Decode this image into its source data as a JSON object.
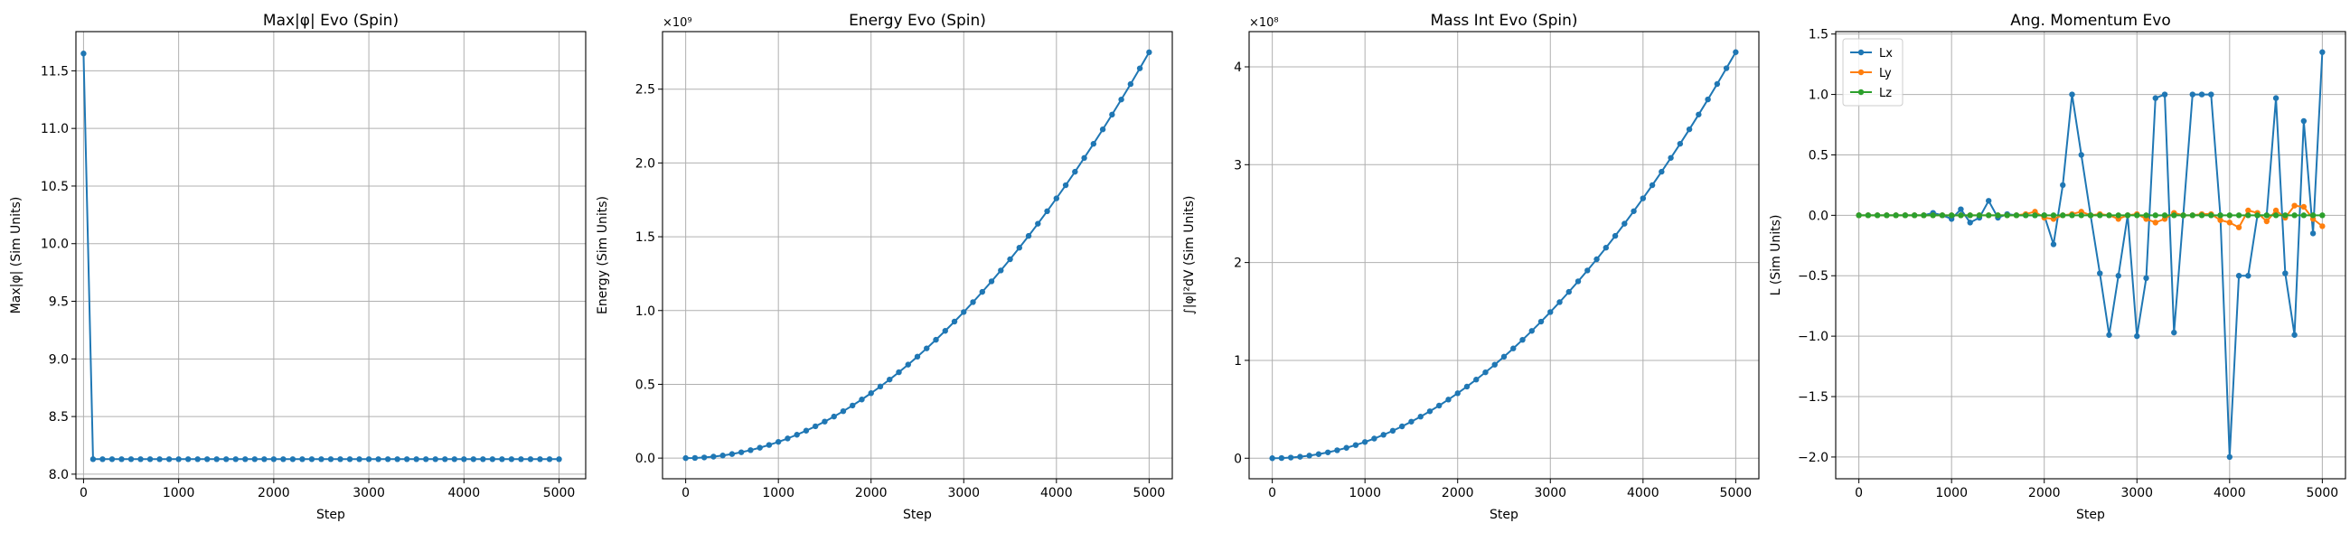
{
  "chart_data": [
    {
      "type": "line",
      "title": "Max|φ| Evo (Spin)",
      "xlabel": "Step",
      "ylabel": "Max|φ| (Sim Units)",
      "xlim": [
        -80,
        5280
      ],
      "ylim": [
        7.96,
        11.84
      ],
      "xticks": [
        0,
        1000,
        2000,
        3000,
        4000,
        5000
      ],
      "yticks": [
        8.0,
        8.5,
        9.0,
        9.5,
        10.0,
        10.5,
        11.0,
        11.5
      ],
      "ytick_labels": [
        "8.0",
        "8.5",
        "9.0",
        "9.5",
        "10.0",
        "10.5",
        "11.0",
        "11.5"
      ],
      "grid": true,
      "multiplier": "",
      "series": [
        {
          "color": "#1f77b4",
          "x": [
            0,
            100,
            200,
            300,
            400,
            500,
            600,
            700,
            800,
            900,
            1000,
            1100,
            1200,
            1300,
            1400,
            1500,
            1600,
            1700,
            1800,
            1900,
            2000,
            2100,
            2200,
            2300,
            2400,
            2500,
            2600,
            2700,
            2800,
            2900,
            3000,
            3100,
            3200,
            3300,
            3400,
            3500,
            3600,
            3700,
            3800,
            3900,
            4000,
            4100,
            4200,
            4300,
            4400,
            4500,
            4600,
            4700,
            4800,
            4900,
            5000
          ],
          "y": [
            11.65,
            8.13,
            8.13,
            8.13,
            8.13,
            8.13,
            8.13,
            8.13,
            8.13,
            8.13,
            8.13,
            8.13,
            8.13,
            8.13,
            8.13,
            8.13,
            8.13,
            8.13,
            8.13,
            8.13,
            8.13,
            8.13,
            8.13,
            8.13,
            8.13,
            8.13,
            8.13,
            8.13,
            8.13,
            8.13,
            8.13,
            8.13,
            8.13,
            8.13,
            8.13,
            8.13,
            8.13,
            8.13,
            8.13,
            8.13,
            8.13,
            8.13,
            8.13,
            8.13,
            8.13,
            8.13,
            8.13,
            8.13,
            8.13,
            8.13,
            8.13
          ]
        }
      ]
    },
    {
      "type": "line",
      "title": "Energy Evo (Spin)",
      "xlabel": "Step",
      "ylabel": "Energy (Sim Units)",
      "xlim": [
        -250,
        5250
      ],
      "ylim": [
        -0.14,
        2.89
      ],
      "xticks": [
        0,
        1000,
        2000,
        3000,
        4000,
        5000
      ],
      "yticks": [
        0.0,
        0.5,
        1.0,
        1.5,
        2.0,
        2.5
      ],
      "ytick_labels": [
        "0.0",
        "0.5",
        "1.0",
        "1.5",
        "2.0",
        "2.5"
      ],
      "grid": true,
      "multiplier": "×10⁹",
      "series": [
        {
          "color": "#1f77b4",
          "x": [
            0,
            100,
            200,
            300,
            400,
            500,
            600,
            700,
            800,
            900,
            1000,
            1100,
            1200,
            1300,
            1400,
            1500,
            1600,
            1700,
            1800,
            1900,
            2000,
            2100,
            2200,
            2300,
            2400,
            2500,
            2600,
            2700,
            2800,
            2900,
            3000,
            3100,
            3200,
            3300,
            3400,
            3500,
            3600,
            3700,
            3800,
            3900,
            4000,
            4100,
            4200,
            4300,
            4400,
            4500,
            4600,
            4700,
            4800,
            4900,
            5000
          ],
          "y": [
            0,
            0.0011,
            0.0044,
            0.0099,
            0.0176,
            0.0275,
            0.0396,
            0.0539,
            0.0704,
            0.0891,
            0.11,
            0.1331,
            0.1584,
            0.1859,
            0.2156,
            0.2475,
            0.2816,
            0.3179,
            0.3564,
            0.3971,
            0.44,
            0.4851,
            0.5324,
            0.5819,
            0.6336,
            0.6875,
            0.7436,
            0.8019,
            0.8624,
            0.9251,
            0.99,
            1.0571,
            1.1264,
            1.1979,
            1.2716,
            1.3475,
            1.4256,
            1.5059,
            1.5884,
            1.6731,
            1.76,
            1.8491,
            1.9404,
            2.0339,
            2.1296,
            2.2275,
            2.3276,
            2.4299,
            2.5344,
            2.6411,
            2.75
          ]
        }
      ]
    },
    {
      "type": "line",
      "title": "Mass Int Evo (Spin)",
      "xlabel": "Step",
      "ylabel": "∫|φ|²dV (Sim Units)",
      "xlim": [
        -250,
        5250
      ],
      "ylim": [
        -0.21,
        4.36
      ],
      "xticks": [
        0,
        1000,
        2000,
        3000,
        4000,
        5000
      ],
      "yticks": [
        0,
        1,
        2,
        3,
        4
      ],
      "ytick_labels": [
        "0",
        "1",
        "2",
        "3",
        "4"
      ],
      "grid": true,
      "multiplier": "×10⁸",
      "series": [
        {
          "color": "#1f77b4",
          "x": [
            0,
            100,
            200,
            300,
            400,
            500,
            600,
            700,
            800,
            900,
            1000,
            1100,
            1200,
            1300,
            1400,
            1500,
            1600,
            1700,
            1800,
            1900,
            2000,
            2100,
            2200,
            2300,
            2400,
            2500,
            2600,
            2700,
            2800,
            2900,
            3000,
            3100,
            3200,
            3300,
            3400,
            3500,
            3600,
            3700,
            3800,
            3900,
            4000,
            4100,
            4200,
            4300,
            4400,
            4500,
            4600,
            4700,
            4800,
            4900,
            5000
          ],
          "y": [
            0,
            0.00166,
            0.00664,
            0.01494,
            0.02656,
            0.0415,
            0.05976,
            0.08134,
            0.10624,
            0.13446,
            0.166,
            0.20086,
            0.23904,
            0.28054,
            0.32536,
            0.3735,
            0.42496,
            0.47974,
            0.53784,
            0.59926,
            0.664,
            0.73206,
            0.80344,
            0.87814,
            0.95616,
            1.0375,
            1.12216,
            1.21014,
            1.30144,
            1.39606,
            1.494,
            1.59526,
            1.69984,
            1.80774,
            1.91896,
            2.0335,
            2.15136,
            2.27254,
            2.39704,
            2.52486,
            2.656,
            2.79046,
            2.92824,
            3.06934,
            3.21376,
            3.3615,
            3.51256,
            3.66694,
            3.82464,
            3.98566,
            4.15
          ]
        }
      ]
    },
    {
      "type": "line",
      "title": "Ang. Momentum Evo",
      "xlabel": "Step",
      "ylabel": "L (Sim Units)",
      "xlim": [
        -250,
        5250
      ],
      "ylim": [
        -2.18,
        1.52
      ],
      "xticks": [
        0,
        1000,
        2000,
        3000,
        4000,
        5000
      ],
      "yticks": [
        -2.0,
        -1.5,
        -1.0,
        -0.5,
        0.0,
        0.5,
        1.0,
        1.5
      ],
      "ytick_labels": [
        "−2.0",
        "−1.5",
        "−1.0",
        "−0.5",
        "0.0",
        "0.5",
        "1.0",
        "1.5"
      ],
      "grid": true,
      "multiplier": "",
      "legend": {
        "position": "top-left",
        "entries": [
          "Lx",
          "Ly",
          "Lz"
        ]
      },
      "series": [
        {
          "name": "Lx",
          "color": "#1f77b4",
          "x": [
            0,
            100,
            200,
            300,
            400,
            500,
            600,
            700,
            800,
            900,
            1000,
            1100,
            1200,
            1300,
            1400,
            1500,
            1600,
            1700,
            1800,
            1900,
            2000,
            2100,
            2200,
            2300,
            2400,
            2500,
            2600,
            2700,
            2800,
            2900,
            3000,
            3100,
            3200,
            3300,
            3400,
            3500,
            3600,
            3700,
            3800,
            3900,
            4000,
            4100,
            4200,
            4300,
            4400,
            4500,
            4600,
            4700,
            4800,
            4900,
            5000
          ],
          "y": [
            0,
            0,
            0,
            0,
            0,
            0,
            0,
            0,
            0.02,
            0,
            -0.03,
            0.05,
            -0.06,
            -0.02,
            0.12,
            -0.02,
            0.01,
            0,
            0,
            0,
            0,
            -0.24,
            0.25,
            1.0,
            0.5,
            0,
            -0.48,
            -0.99,
            -0.5,
            0,
            -1.0,
            -0.52,
            0.97,
            1.0,
            -0.97,
            0,
            1.0,
            1.0,
            1.0,
            0,
            -2.0,
            -0.5,
            -0.5,
            0,
            0,
            0.97,
            -0.48,
            -0.99,
            0.78,
            -0.15,
            1.35
          ]
        },
        {
          "name": "Ly",
          "color": "#ff7f0e",
          "x": [
            0,
            100,
            200,
            300,
            400,
            500,
            600,
            700,
            800,
            900,
            1000,
            1100,
            1200,
            1300,
            1400,
            1500,
            1600,
            1700,
            1800,
            1900,
            2000,
            2100,
            2200,
            2300,
            2400,
            2500,
            2600,
            2700,
            2800,
            2900,
            3000,
            3100,
            3200,
            3300,
            3400,
            3500,
            3600,
            3700,
            3800,
            3900,
            4000,
            4100,
            4200,
            4300,
            4400,
            4500,
            4600,
            4700,
            4800,
            4900,
            5000
          ],
          "y": [
            0,
            0,
            0,
            0,
            0,
            0,
            0,
            0,
            0,
            0,
            0,
            0,
            0,
            0,
            0,
            0,
            0,
            0,
            0.01,
            0.03,
            -0.02,
            -0.03,
            0,
            0.01,
            0.03,
            0,
            0.01,
            0,
            -0.03,
            0,
            0.01,
            -0.03,
            -0.06,
            -0.03,
            0.02,
            0,
            0,
            0.01,
            0.01,
            -0.04,
            -0.06,
            -0.1,
            0.04,
            0.02,
            -0.05,
            0.04,
            -0.02,
            0.08,
            0.07,
            -0.03,
            -0.09
          ]
        },
        {
          "name": "Lz",
          "color": "#2ca02c",
          "x": [
            0,
            100,
            200,
            300,
            400,
            500,
            600,
            700,
            800,
            900,
            1000,
            1100,
            1200,
            1300,
            1400,
            1500,
            1600,
            1700,
            1800,
            1900,
            2000,
            2100,
            2200,
            2300,
            2400,
            2500,
            2600,
            2700,
            2800,
            2900,
            3000,
            3100,
            3200,
            3300,
            3400,
            3500,
            3600,
            3700,
            3800,
            3900,
            4000,
            4100,
            4200,
            4300,
            4400,
            4500,
            4600,
            4700,
            4800,
            4900,
            5000
          ],
          "y": [
            0,
            0,
            0,
            0,
            0,
            0,
            0,
            0,
            0,
            0,
            0,
            0,
            0,
            0,
            0,
            0,
            0,
            0,
            0,
            0,
            0,
            0,
            0,
            0,
            0,
            0,
            0,
            0,
            0,
            0,
            0,
            0,
            0,
            0,
            0,
            0,
            0,
            0,
            0,
            0,
            0,
            0,
            0,
            0,
            0,
            0,
            0,
            0,
            0,
            0,
            0
          ]
        }
      ]
    }
  ]
}
